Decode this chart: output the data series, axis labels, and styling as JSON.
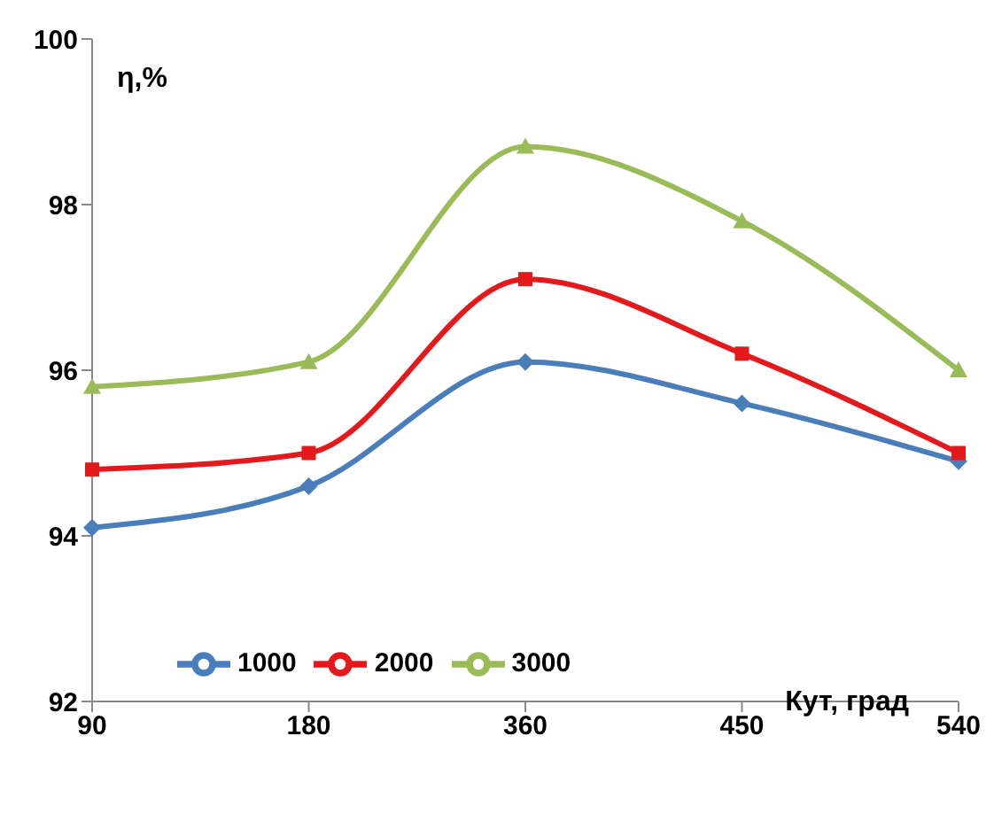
{
  "chart_data": {
    "type": "line",
    "xlabel": "Кут, град",
    "ylabel": "η,%",
    "categories": [
      "90",
      "180",
      "360",
      "450",
      "540"
    ],
    "series": [
      {
        "name": "1000",
        "color": "#4a7ebb",
        "marker": "diamond",
        "values": [
          94.1,
          94.6,
          96.1,
          95.6,
          94.9
        ]
      },
      {
        "name": "2000",
        "color": "#e3191c",
        "marker": "square",
        "values": [
          94.8,
          95.0,
          97.1,
          96.2,
          95.0
        ]
      },
      {
        "name": "3000",
        "color": "#9bbb59",
        "marker": "triangle",
        "values": [
          95.8,
          96.1,
          98.7,
          97.8,
          96.0
        ]
      }
    ],
    "ylim": [
      92,
      100
    ],
    "yticks": [
      92,
      94,
      96,
      98,
      100
    ],
    "grid": false,
    "legend": "bottom"
  }
}
